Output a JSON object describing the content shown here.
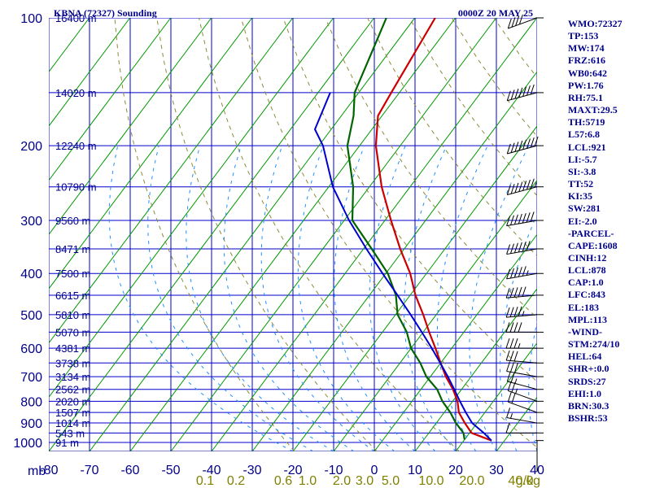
{
  "title": "KBNA (72327) Sounding",
  "valid_time": "0000Z 20 MAY 25",
  "pressure_unit": "mb",
  "mixing_unit": "g/kg",
  "indices": [
    "WMO:72327",
    "TP:153",
    "MW:174",
    "FRZ:616",
    "WB0:642",
    "PW:1.76",
    "RH:75.1",
    "MAXT:29.5",
    "TH:5719",
    "L57:6.8",
    "LCL:921",
    "LI:-5.7",
    "SI:-3.8",
    "TT:52",
    "KI:35",
    "SW:281",
    "EI:-2.0",
    "-PARCEL-",
    "CAPE:1608",
    "CINH:12",
    "LCL:878",
    "CAP:1.0",
    "LFC:843",
    "EL:183",
    "MPL:113",
    "-WIND-",
    "STM:274/10",
    "HEL:64",
    "SHR+:0.0",
    "SRDS:27",
    "EHI:1.0",
    "BRN:30.3",
    "BSHR:53"
  ],
  "colors": {
    "frame": "#00008b",
    "grid": "#0000cd",
    "isotherm": "#009900",
    "dry_adiabat": "#8b8b3a",
    "moist_adiabat": "#1e90ff",
    "temperature": "#cc0000",
    "dewpoint": "#006400",
    "parcel": "#0000cd",
    "wind": "#000000"
  },
  "chart_data": {
    "type": "skew-t",
    "title": "KBNA (72327) Sounding",
    "ylabel": "mb",
    "xlabel": "",
    "pressure_levels": [
      100,
      200,
      300,
      400,
      500,
      600,
      700,
      800,
      900,
      1000
    ],
    "ylim": [
      1000,
      100
    ],
    "temperature_ticks": [
      -80,
      -70,
      -60,
      -50,
      -40,
      -30,
      -20,
      -10,
      0,
      10,
      20,
      30,
      40
    ],
    "xlim": [
      -80,
      40
    ],
    "height_labels": [
      {
        "p": 100,
        "text": "16400 m"
      },
      {
        "p": 150,
        "text": "14020 m"
      },
      {
        "p": 200,
        "text": "12240 m"
      },
      {
        "p": 250,
        "text": "10790 m"
      },
      {
        "p": 300,
        "text": "9560 m"
      },
      {
        "p": 350,
        "text": "8471 m"
      },
      {
        "p": 400,
        "text": "7500 m"
      },
      {
        "p": 450,
        "text": "6615 m"
      },
      {
        "p": 500,
        "text": "5810 m"
      },
      {
        "p": 550,
        "text": "5070 m"
      },
      {
        "p": 600,
        "text": "4381 m"
      },
      {
        "p": 650,
        "text": "3738 m"
      },
      {
        "p": 700,
        "text": "3134 m"
      },
      {
        "p": 750,
        "text": "2562 m"
      },
      {
        "p": 800,
        "text": "2020 m"
      },
      {
        "p": 850,
        "text": "1507 m"
      },
      {
        "p": 900,
        "text": "1014 m"
      },
      {
        "p": 950,
        "text": "543 m"
      },
      {
        "p": 1000,
        "text": "91 m"
      }
    ],
    "mixing_ratio_labels": [
      "0.1",
      "0.2",
      "0.6",
      "1.0",
      "2.0",
      "3.0",
      "5.0",
      "10.0",
      "20.0",
      "40.0"
    ],
    "series": [
      {
        "key": "temperature",
        "p": [
          990,
          950,
          900,
          850,
          800,
          750,
          700,
          650,
          600,
          550,
          500,
          450,
          400,
          350,
          300,
          250,
          200,
          170,
          150,
          100
        ],
        "t": [
          26.8,
          20.5,
          17.0,
          13.6,
          11.2,
          7.9,
          3.8,
          0.0,
          -4.0,
          -8.5,
          -13.2,
          -18.7,
          -24.0,
          -31.0,
          -38.5,
          -47.0,
          -56.0,
          -61.0,
          -62.0,
          -65.0
        ]
      },
      {
        "key": "dewpoint",
        "p": [
          985,
          950,
          900,
          850,
          800,
          750,
          700,
          650,
          600,
          550,
          500,
          450,
          400,
          350,
          300,
          250,
          200,
          170,
          150,
          100
        ],
        "t": [
          20.0,
          18.5,
          14.8,
          11.5,
          7.5,
          4.0,
          -1.0,
          -5.0,
          -10.0,
          -14.0,
          -19.5,
          -23.5,
          -29.5,
          -38.0,
          -48.0,
          -54.0,
          -63.0,
          -67.0,
          -71.0,
          -77.0
        ]
      },
      {
        "key": "parcel",
        "p": [
          990,
          950,
          900,
          850,
          800,
          750,
          700,
          650,
          600,
          550,
          500,
          450,
          400,
          350,
          300,
          250,
          200,
          183,
          150
        ],
        "t": [
          26.8,
          23.5,
          18.8,
          15.3,
          11.8,
          8.2,
          4.3,
          -0.1,
          -4.9,
          -10.3,
          -16.3,
          -23.1,
          -30.8,
          -39.3,
          -48.8,
          -59.0,
          -69.0,
          -74.0,
          -77.0
        ]
      }
    ],
    "wind_barbs": [
      {
        "p": 990,
        "dir": 0,
        "spd": 5
      },
      {
        "p": 950,
        "dir": 270,
        "spd": 10
      },
      {
        "p": 900,
        "dir": 260,
        "spd": 15
      },
      {
        "p": 850,
        "dir": 250,
        "spd": 20
      },
      {
        "p": 800,
        "dir": 250,
        "spd": 25
      },
      {
        "p": 750,
        "dir": 255,
        "spd": 25
      },
      {
        "p": 700,
        "dir": 260,
        "spd": 30
      },
      {
        "p": 650,
        "dir": 265,
        "spd": 30
      },
      {
        "p": 600,
        "dir": 270,
        "spd": 35
      },
      {
        "p": 550,
        "dir": 270,
        "spd": 40
      },
      {
        "p": 500,
        "dir": 275,
        "spd": 45
      },
      {
        "p": 450,
        "dir": 275,
        "spd": 50
      },
      {
        "p": 400,
        "dir": 280,
        "spd": 55
      },
      {
        "p": 350,
        "dir": 280,
        "spd": 60
      },
      {
        "p": 300,
        "dir": 280,
        "spd": 70
      },
      {
        "p": 250,
        "dir": 285,
        "spd": 75
      },
      {
        "p": 200,
        "dir": 285,
        "spd": 80
      },
      {
        "p": 150,
        "dir": 285,
        "spd": 70
      },
      {
        "p": 100,
        "dir": 290,
        "spd": 40
      }
    ],
    "grid": true
  }
}
